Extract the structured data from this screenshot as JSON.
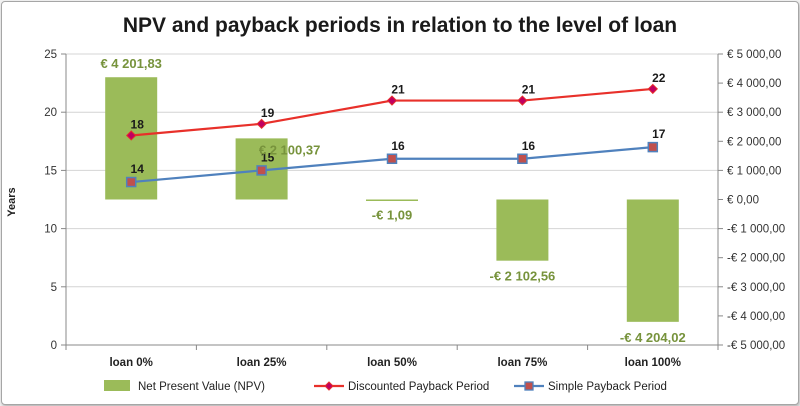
{
  "colors": {
    "npv": "#9bbb59",
    "npv_label": "#77933c",
    "discounted": "#e8302a",
    "discounted_marker": "#c00060",
    "simple": "#4f81bd",
    "simple_marker": "#c0504d",
    "grid": "#d4d4d4"
  },
  "chart_data": {
    "type": "bar+line",
    "title": "NPV and payback periods in relation to the level of loan",
    "categories": [
      "loan 0%",
      "loan 25%",
      "loan 50%",
      "loan 75%",
      "loan 100%"
    ],
    "left_axis": {
      "label": "Years",
      "range": [
        0,
        25
      ],
      "ticks": [
        "0",
        "5",
        "10",
        "15",
        "20",
        "25"
      ]
    },
    "right_axis": {
      "label": "",
      "range": [
        -5000,
        5000
      ],
      "ticks": [
        "-€ 5 000,00",
        "-€ 4 000,00",
        "-€ 3 000,00",
        "-€ 2 000,00",
        "-€ 1 000,00",
        "€ 0,00",
        "€ 1 000,00",
        "€ 2 000,00",
        "€ 3 000,00",
        "€ 4 000,00",
        "€ 5 000,00"
      ]
    },
    "grid": "horizontal",
    "legend_position": "bottom",
    "series": [
      {
        "name": "Net Present Value (NPV)",
        "kind": "bar",
        "axis": "right",
        "values": [
          4201.83,
          2100.37,
          -1.09,
          -2102.56,
          -4204.02
        ],
        "labels": [
          "€ 4 201,83",
          "€ 2 100,37",
          "-€ 1,09",
          "-€ 2 102,56",
          "-€ 4 204,02"
        ]
      },
      {
        "name": "Discounted Payback Period",
        "kind": "line",
        "axis": "left",
        "values": [
          18,
          19,
          21,
          21,
          22
        ],
        "labels": [
          "18",
          "19",
          "21",
          "21",
          "22"
        ]
      },
      {
        "name": "Simple Payback Period",
        "kind": "line",
        "axis": "left",
        "values": [
          14,
          15,
          16,
          16,
          17
        ],
        "labels": [
          "14",
          "15",
          "16",
          "16",
          "17"
        ]
      }
    ]
  }
}
